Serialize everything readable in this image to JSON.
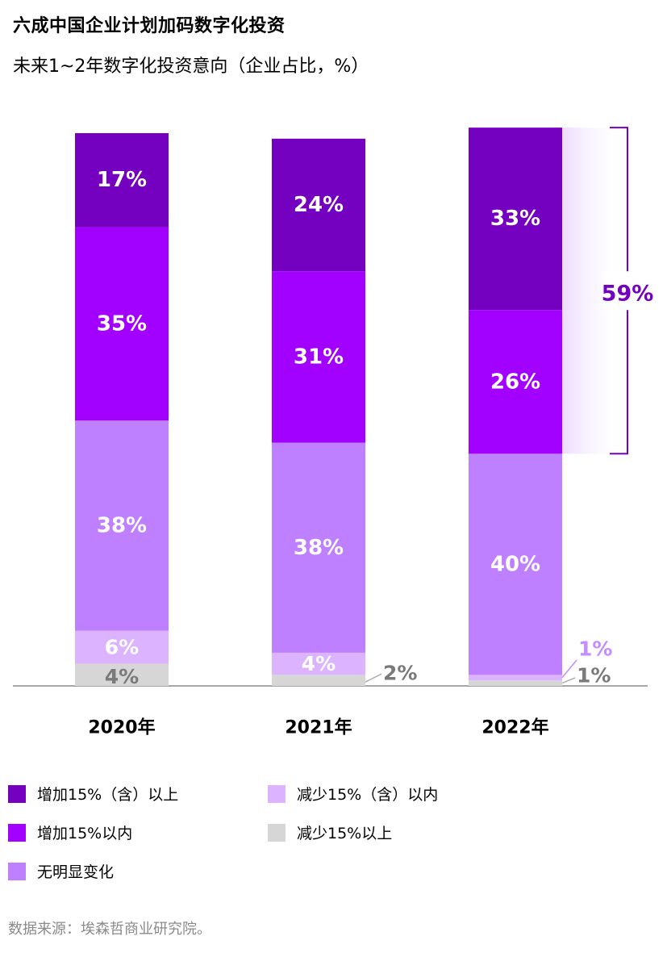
{
  "title": "六成中国企业计划加码数字化投资",
  "subtitle": "未来1~2年数字化投资意向（企业占比，%）",
  "source": "数据来源：埃森哲商业研究院。",
  "colors": {
    "increase_15_plus": "#7400c0",
    "increase_within_15": "#a200ff",
    "no_change": "#bf80ff",
    "decrease_within_15": "#dcb3ff",
    "decrease_15_plus": "#d6d6d6",
    "label_dark": "#7a7a7a",
    "label_light_purple": "#c48cff",
    "bracket": "#7400c0"
  },
  "legend": {
    "items": [
      {
        "label": "增加15%（含）以上",
        "color_key": "increase_15_plus"
      },
      {
        "label": "减少15%（含）以内",
        "color_key": "decrease_within_15"
      },
      {
        "label": "增加15%以内",
        "color_key": "increase_within_15"
      },
      {
        "label": "减少15%以上",
        "color_key": "decrease_15_plus"
      },
      {
        "label": "无明显变化",
        "color_key": "no_change"
      }
    ]
  },
  "chart_data": {
    "type": "bar",
    "stacked": true,
    "categories": [
      "2020年",
      "2021年",
      "2022年"
    ],
    "series": [
      {
        "name": "减少15%以上",
        "values": [
          4,
          2,
          1
        ]
      },
      {
        "name": "减少15%（含）以内",
        "values": [
          6,
          4,
          1
        ]
      },
      {
        "name": "无明显变化",
        "values": [
          38,
          38,
          40
        ]
      },
      {
        "name": "增加15%以内",
        "values": [
          35,
          31,
          26
        ]
      },
      {
        "name": "增加15%（含）以上",
        "values": [
          17,
          24,
          33
        ]
      }
    ],
    "data_labels": [
      [
        "4%",
        "6%",
        "38%",
        "35%",
        "17%"
      ],
      [
        "2%",
        "4%",
        "38%",
        "31%",
        "24%"
      ],
      [
        "1%",
        "1%",
        "40%",
        "26%",
        "33%"
      ]
    ],
    "annotation": {
      "category": "2022年",
      "label": "59%"
    },
    "ylim": [
      0,
      100
    ]
  }
}
